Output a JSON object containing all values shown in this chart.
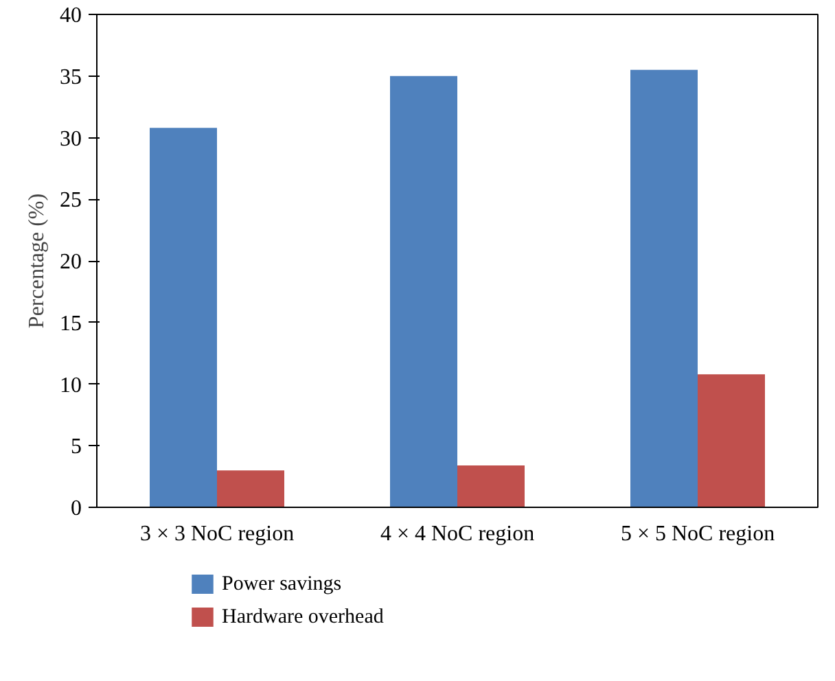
{
  "chart_data": {
    "type": "bar",
    "ylabel": "Percentage (%)",
    "categories": [
      "3 × 3 NoC region",
      "4 × 4 NoC region",
      "5 × 5 NoC region"
    ],
    "series": [
      {
        "name": "Power savings",
        "color": "#4f81bd",
        "values": [
          30.8,
          35.0,
          35.5
        ]
      },
      {
        "name": "Hardware overhead",
        "color": "#c0504d",
        "values": [
          3.0,
          3.4,
          10.8
        ]
      }
    ],
    "ylim": [
      0,
      40
    ],
    "yticks": [
      0,
      5,
      10,
      15,
      20,
      25,
      30,
      35,
      40
    ],
    "grid": false,
    "legend": "bottom"
  }
}
